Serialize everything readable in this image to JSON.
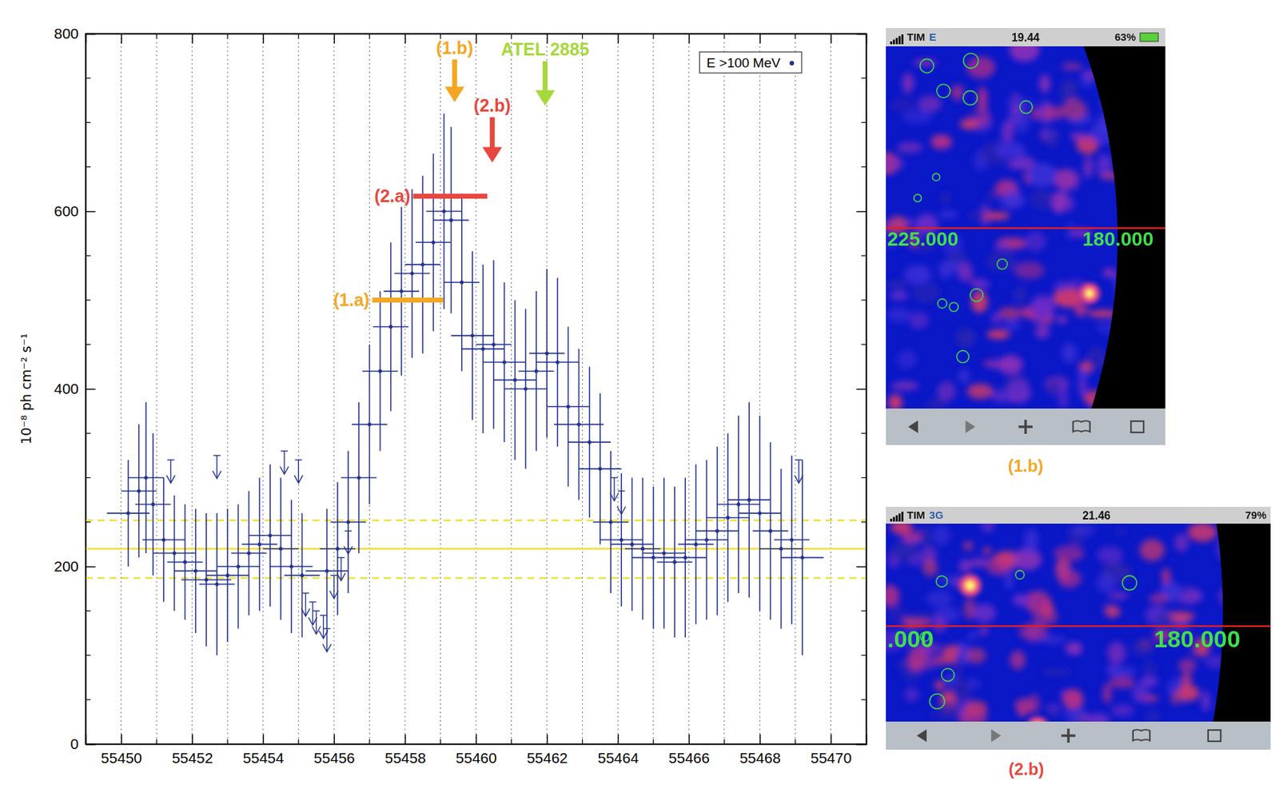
{
  "chart_data": {
    "type": "scatter",
    "y_label": "10⁻⁸ ph cm⁻² s⁻¹",
    "xlim": [
      55449,
      55471
    ],
    "xticks": [
      55450,
      55452,
      55454,
      55456,
      55458,
      55460,
      55462,
      55464,
      55466,
      55468,
      55470
    ],
    "xminor_ticks": [
      55449,
      55451,
      55453,
      55455,
      55457,
      55459,
      55461,
      55463,
      55465,
      55467,
      55469,
      55471
    ],
    "ylim": [
      0,
      800
    ],
    "yticks": [
      0,
      200,
      400,
      600,
      800
    ],
    "yminor_ticks": [
      50,
      100,
      150,
      250,
      300,
      350,
      450,
      500,
      550,
      650,
      700,
      750
    ],
    "grid": true,
    "legend": "top-right",
    "series": [
      {
        "name": "E >100 MeV",
        "color": "#23338f",
        "marker": "dot",
        "x": [
          55450.2,
          55450.5,
          55450.7,
          55450.9,
          55451.2,
          55451.5,
          55451.8,
          55452.1,
          55452.4,
          55452.7,
          55453.0,
          55453.3,
          55453.6,
          55453.9,
          55454.2,
          55454.5,
          55454.8,
          55455.1,
          55455.8,
          55456.1,
          55456.4,
          55456.7,
          55457.0,
          55457.3,
          55457.6,
          55457.9,
          55458.2,
          55458.5,
          55458.8,
          55459.1,
          55459.3,
          55459.6,
          55459.9,
          55460.2,
          55460.5,
          55460.8,
          55461.1,
          55461.4,
          55461.7,
          55462.0,
          55462.3,
          55462.6,
          55462.9,
          55463.2,
          55463.5,
          55463.8,
          55464.1,
          55464.4,
          55464.7,
          55465.0,
          55465.3,
          55465.6,
          55465.9,
          55466.2,
          55466.5,
          55466.8,
          55467.1,
          55467.4,
          55467.7,
          55468.0,
          55468.3,
          55468.6,
          55468.9,
          55469.2
        ],
        "values": [
          260,
          285,
          300,
          270,
          230,
          215,
          205,
          195,
          185,
          180,
          190,
          200,
          215,
          225,
          235,
          220,
          200,
          190,
          195,
          220,
          250,
          300,
          360,
          420,
          470,
          510,
          530,
          540,
          565,
          600,
          590,
          520,
          460,
          445,
          450,
          430,
          410,
          400,
          420,
          440,
          430,
          380,
          360,
          340,
          310,
          250,
          230,
          225,
          220,
          210,
          215,
          205,
          210,
          225,
          230,
          240,
          255,
          270,
          275,
          260,
          240,
          220,
          230,
          210
        ],
        "errors": [
          60,
          75,
          85,
          80,
          70,
          65,
          65,
          70,
          75,
          80,
          75,
          70,
          70,
          75,
          80,
          80,
          75,
          70,
          70,
          75,
          80,
          85,
          90,
          90,
          95,
          95,
          95,
          100,
          100,
          110,
          105,
          100,
          95,
          95,
          95,
          90,
          90,
          90,
          90,
          95,
          95,
          90,
          85,
          85,
          85,
          80,
          75,
          75,
          80,
          80,
          85,
          85,
          90,
          90,
          90,
          95,
          95,
          100,
          110,
          110,
          100,
          90,
          95,
          110
        ],
        "x_errors": [
          0.6,
          0.5,
          0.5,
          0.5,
          0.6,
          0.6,
          0.5,
          0.6,
          0.7,
          0.5,
          0.6,
          0.6,
          0.5,
          0.5,
          0.6,
          0.5,
          0.6,
          0.5,
          0.6,
          0.5,
          0.5,
          0.5,
          0.5,
          0.5,
          0.5,
          0.5,
          0.5,
          0.5,
          0.5,
          0.5,
          0.5,
          0.5,
          0.6,
          0.6,
          0.5,
          0.6,
          0.6,
          0.6,
          0.5,
          0.5,
          0.6,
          0.6,
          0.7,
          0.6,
          0.6,
          0.5,
          0.6,
          0.6,
          0.5,
          0.6,
          0.6,
          0.5,
          0.6,
          0.5,
          0.6,
          0.6,
          0.6,
          0.6,
          0.6,
          0.6,
          0.5,
          0.6,
          0.5,
          0.6
        ]
      }
    ],
    "upper_limits": {
      "color": "#23338f",
      "marker": "arrow",
      "x": [
        55451.4,
        55452.7,
        55454.6,
        55455.0,
        55455.2,
        55455.4,
        55455.5,
        55455.7,
        55455.8,
        55456.0,
        55456.2,
        55456.4,
        55463.9,
        55464.1,
        55469.1
      ],
      "values": [
        320,
        325,
        330,
        320,
        170,
        160,
        150,
        145,
        130,
        190,
        210,
        240,
        300,
        285,
        320
      ]
    },
    "reference_lines": [
      {
        "value": 220,
        "line_style": "solid",
        "color": "#f2df3d"
      },
      {
        "value": 252,
        "line_style": "dashed",
        "color": "#f2df3d"
      },
      {
        "value": 187,
        "line_style": "dashed",
        "color": "#f2df3d"
      }
    ],
    "annotations": [
      {
        "text": "(1.a)",
        "color": "#f5a623",
        "type": "bar",
        "x": [
          55457.08,
          55459.08
        ],
        "y": 500
      },
      {
        "text": "(2.a)",
        "color": "#e8473f",
        "type": "bar",
        "x": [
          55458.23,
          55460.32
        ],
        "y": 617
      },
      {
        "text": "(1.b)",
        "color": "#f5a623",
        "type": "arrow",
        "x": 55459.4,
        "y": [
          771,
          723
        ]
      },
      {
        "text": "(2.b)",
        "color": "#e8473f",
        "type": "arrow",
        "x": 55460.46,
        "y": [
          706,
          655
        ]
      },
      {
        "text": "ATEL 2885",
        "color": "#a6d83a",
        "type": "arrow",
        "x": 55461.95,
        "y": [
          769,
          719
        ]
      }
    ]
  },
  "panels": [
    {
      "carrier": "TIM",
      "network": "E",
      "time": "19.44",
      "battery": "63%",
      "coord_labels": [
        "225.000",
        "180.000"
      ],
      "caption": "(1.b)",
      "caption_color": "#f5a623"
    },
    {
      "carrier": "TIM",
      "network": "3G",
      "time": "21.46",
      "battery": "79%",
      "coord_labels": [
        ".000",
        "180.000"
      ],
      "caption": "(2.b)",
      "caption_color": "#e8473f"
    }
  ]
}
